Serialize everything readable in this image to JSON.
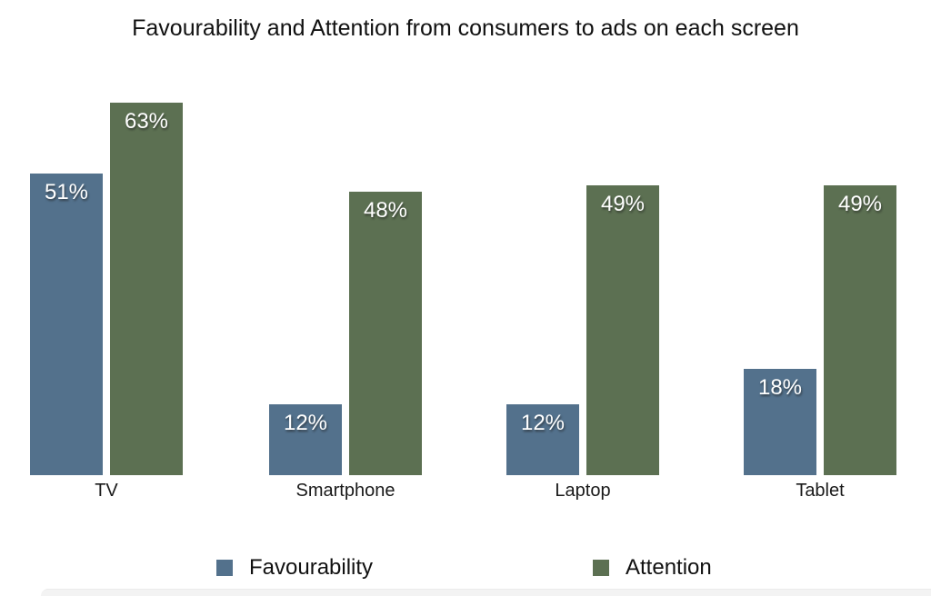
{
  "title": "Favourability and Attention from consumers to ads on each screen",
  "chart_data": {
    "type": "bar",
    "title": "Favourability and Attention from consumers to ads on each screen",
    "categories": [
      "TV",
      "Smartphone",
      "Laptop",
      "Tablet"
    ],
    "series": [
      {
        "name": "Favourability",
        "color": "#53718c",
        "values": [
          51,
          12,
          12,
          18
        ],
        "labels": [
          "51%",
          "12%",
          "12%",
          "18%"
        ]
      },
      {
        "name": "Attention",
        "color": "#5c7052",
        "values": [
          63,
          48,
          49,
          49
        ],
        "labels": [
          "63%",
          "48%",
          "49%",
          "49%"
        ]
      }
    ],
    "value_suffix": "%",
    "value_label_position": "inside-top",
    "legend_position": "bottom",
    "grid": false,
    "axes_visible": false
  },
  "colors": {
    "favourability": "#53718c",
    "attention": "#5c7052",
    "background": "#ffffff",
    "bottom_strip": "#f3f3f3"
  }
}
